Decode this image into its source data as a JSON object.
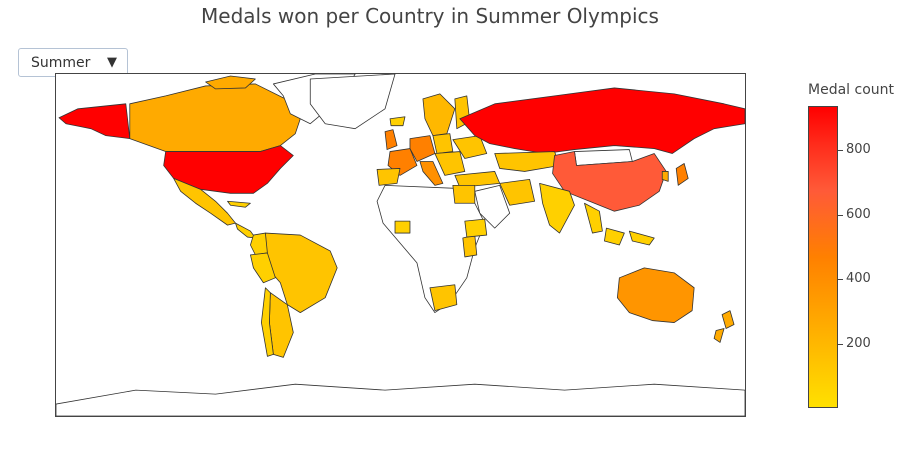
{
  "title": "Medals won per Country in Summer Olympics",
  "dropdown": {
    "selected": "Summer"
  },
  "colorbar": {
    "title": "Medal count",
    "ticks": [
      "800",
      "600",
      "400",
      "200"
    ],
    "colors": [
      "#ffe000",
      "#ffaa00",
      "#ff8000",
      "#ff5a38",
      "#ff2a1a",
      "#ff0000"
    ]
  }
}
